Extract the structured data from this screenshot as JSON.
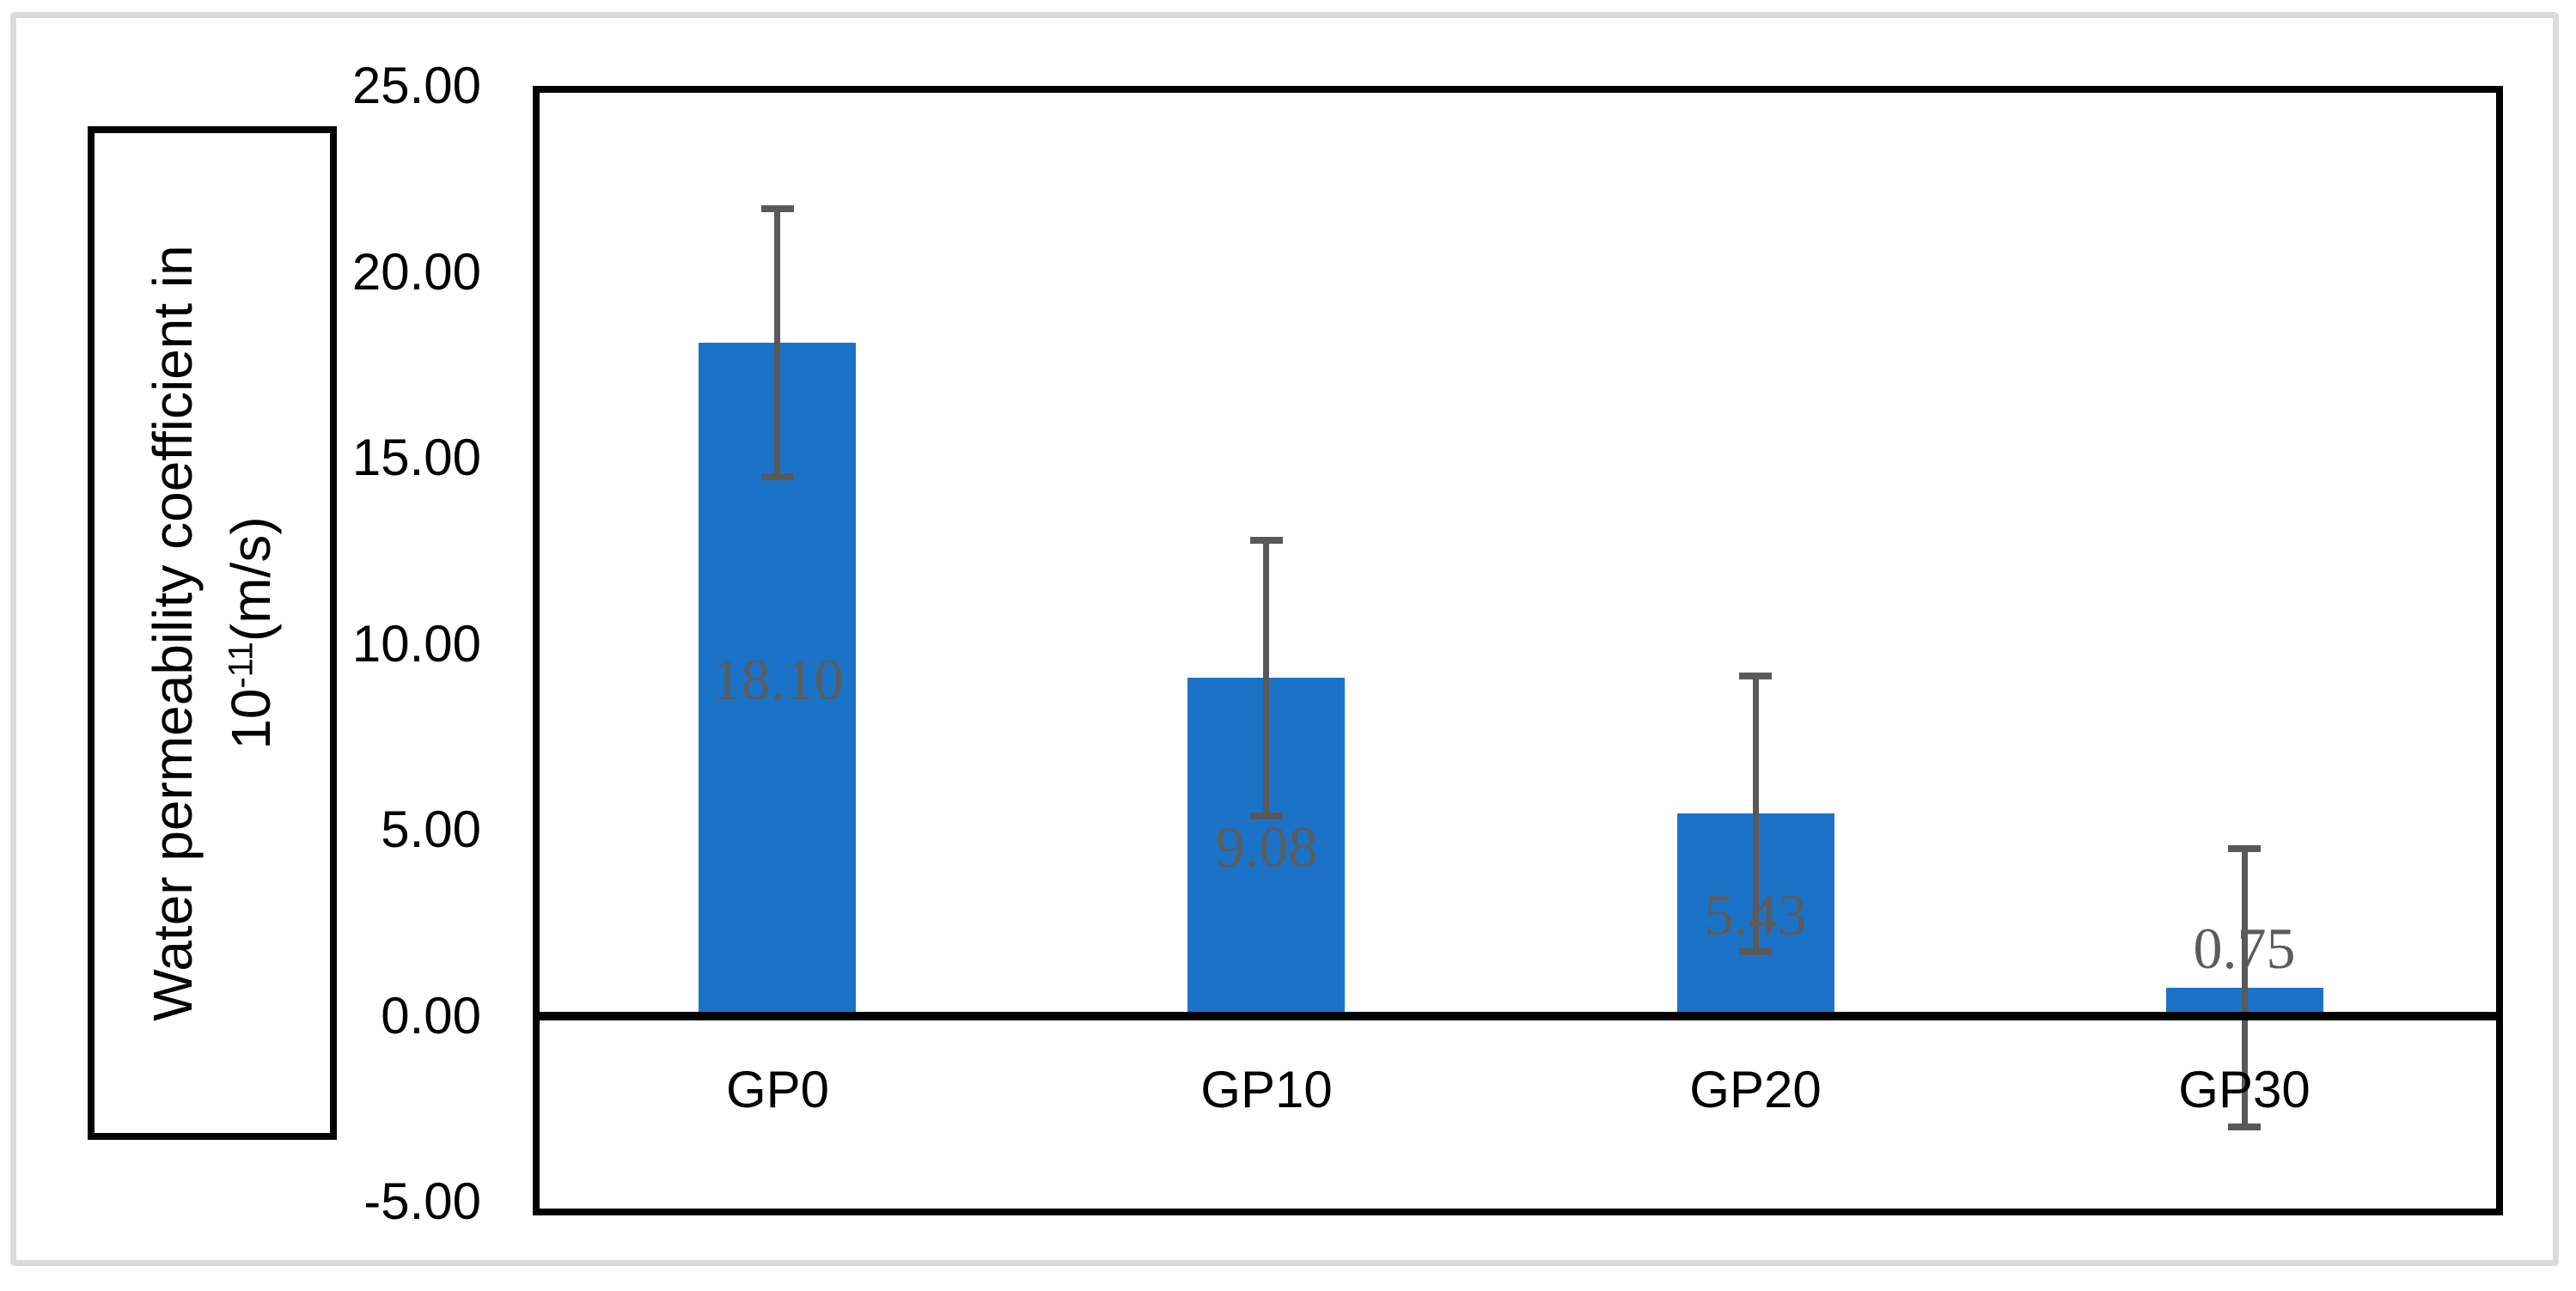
{
  "chart_data": {
    "type": "bar",
    "title": "",
    "categories": [
      "GP0",
      "GP10",
      "GP20",
      "GP30"
    ],
    "values": [
      18.1,
      9.08,
      5.43,
      0.75
    ],
    "data_labels": [
      "18.10",
      "9.08",
      "5.43",
      "0.75"
    ],
    "error_bars": {
      "plus": [
        3.6,
        3.7,
        3.7,
        3.75
      ],
      "minus": [
        3.6,
        3.7,
        3.7,
        3.75
      ]
    },
    "ylabel_line1": "Water permeability coefficient in",
    "ylabel_base": "10",
    "ylabel_exp": "-11",
    "ylabel_unit": "(m/s)",
    "xlabel": "",
    "yticks": [
      "25.00",
      "20.00",
      "15.00",
      "10.00",
      "5.00",
      "0.00",
      "-5.00"
    ],
    "ytick_values": [
      25,
      20,
      15,
      10,
      5,
      0,
      -5
    ],
    "ylim": [
      -5,
      25
    ],
    "grid": false,
    "legend": null,
    "colors": {
      "bar_fill": "#1b73c8",
      "error_bar": "#595959",
      "data_label": "#5c5c5c",
      "axis_text": "#000000",
      "plot_border": "#000000",
      "figure_border": "#dbdbdb",
      "background": "#ffffff"
    }
  }
}
